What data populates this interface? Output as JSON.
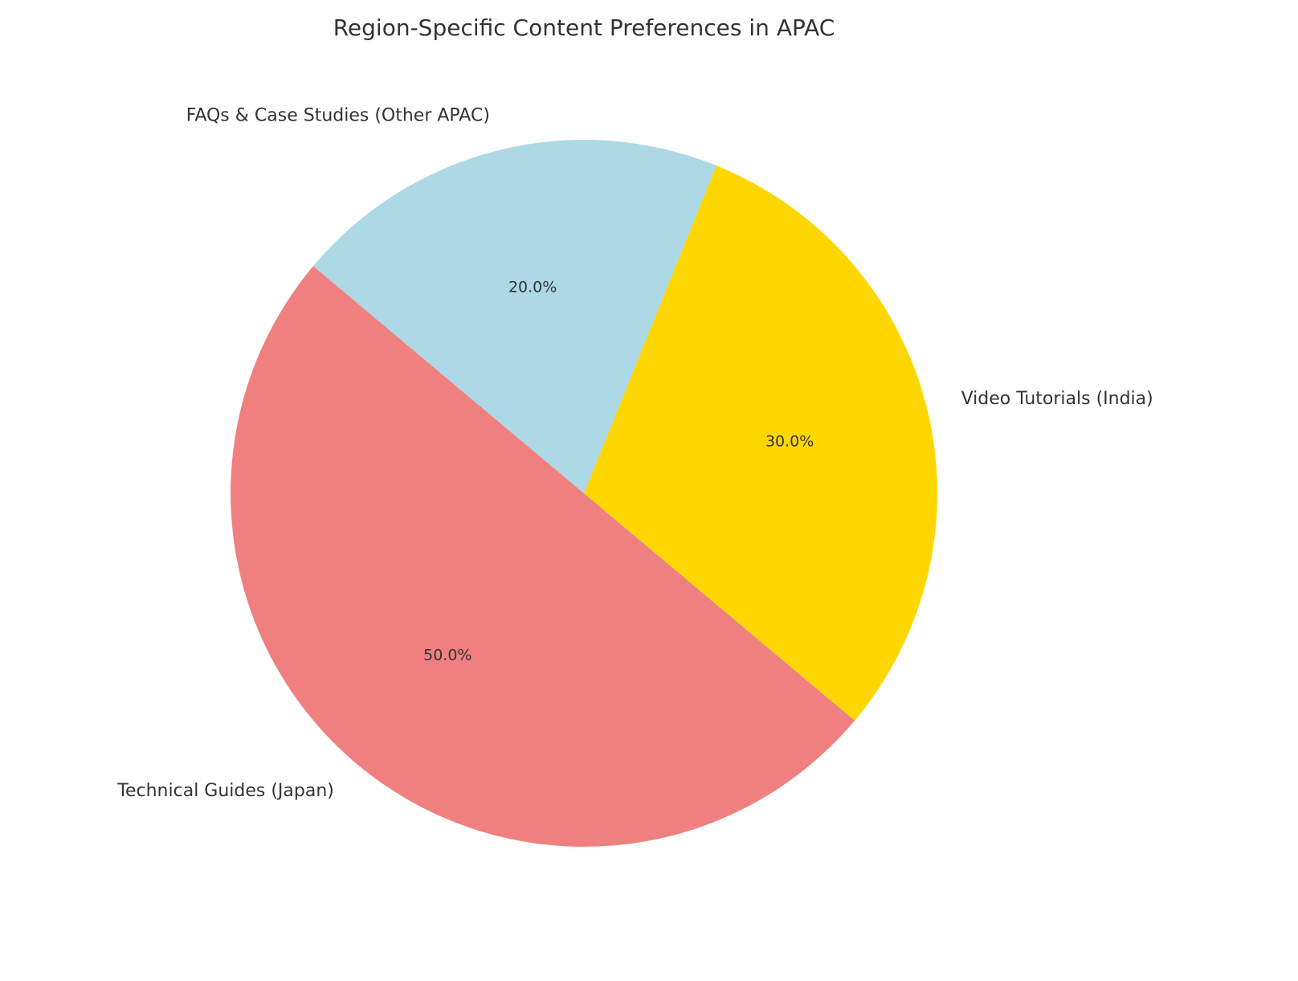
{
  "chart_data": {
    "type": "pie",
    "title": "Region-Specific Content Preferences in APAC",
    "categories": [
      "Technical Guides (Japan)",
      "Video Tutorials (India)",
      "FAQs & Case Studies (Other APAC)"
    ],
    "values": [
      50,
      30,
      20
    ],
    "value_labels": [
      "50.0%",
      "30.0%",
      "20.0%"
    ],
    "colors": [
      "#f08080",
      "#ffd700",
      "#add8e6"
    ],
    "startangle": 140,
    "counterclockwise": true
  }
}
